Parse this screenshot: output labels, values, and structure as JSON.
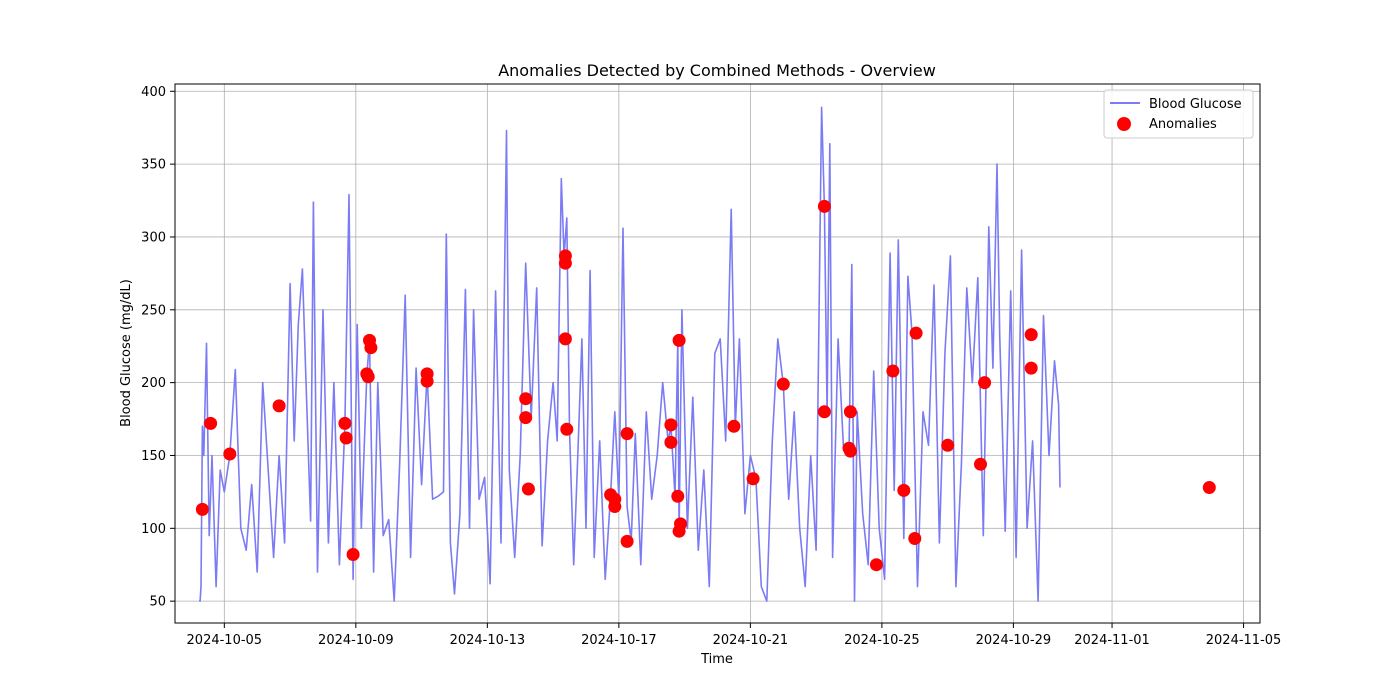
{
  "chart_data": {
    "type": "line",
    "title": "Anomalies Detected by Combined Methods - Overview",
    "xlabel": "Time",
    "ylabel": "Blood Glucose (mg/dL)",
    "x_type": "date",
    "xlim": [
      "2024-10-03T12:00",
      "2024-11-05T12:00"
    ],
    "ylim": [
      35,
      405
    ],
    "x_ticks": [
      {
        "value": "2024-10-05",
        "label": "2024-10-05"
      },
      {
        "value": "2024-10-09",
        "label": "2024-10-09"
      },
      {
        "value": "2024-10-13",
        "label": "2024-10-13"
      },
      {
        "value": "2024-10-17",
        "label": "2024-10-17"
      },
      {
        "value": "2024-10-21",
        "label": "2024-10-21"
      },
      {
        "value": "2024-10-25",
        "label": "2024-10-25"
      },
      {
        "value": "2024-10-29",
        "label": "2024-10-29"
      },
      {
        "value": "2024-11-01",
        "label": "2024-11-01"
      },
      {
        "value": "2024-11-05",
        "label": "2024-11-05"
      }
    ],
    "y_ticks": [
      50,
      100,
      150,
      200,
      250,
      300,
      350,
      400
    ],
    "grid": true,
    "legend": {
      "position": "top-right",
      "entries": [
        {
          "label": "Blood Glucose",
          "marker": "line"
        },
        {
          "label": "Anomalies",
          "marker": "circle"
        }
      ]
    },
    "series": [
      {
        "name": "Blood Glucose",
        "color": "#7b7bf5",
        "points": [
          [
            "2024-10-04T06:00",
            51
          ],
          [
            "2024-10-04T06:20",
            50
          ],
          [
            "2024-10-04T07:00",
            60
          ],
          [
            "2024-10-04T08:00",
            170
          ],
          [
            "2024-10-04T09:00",
            150
          ],
          [
            "2024-10-04T11:00",
            227
          ],
          [
            "2024-10-04T13:00",
            95
          ],
          [
            "2024-10-04T15:00",
            150
          ],
          [
            "2024-10-04T18:00",
            60
          ],
          [
            "2024-10-04T21:00",
            140
          ],
          [
            "2024-10-05T00:00",
            125
          ],
          [
            "2024-10-05T04:00",
            150
          ],
          [
            "2024-10-05T08:00",
            209
          ],
          [
            "2024-10-05T12:00",
            100
          ],
          [
            "2024-10-05T16:00",
            85
          ],
          [
            "2024-10-05T20:00",
            130
          ],
          [
            "2024-10-06T00:00",
            70
          ],
          [
            "2024-10-06T04:00",
            200
          ],
          [
            "2024-10-06T08:00",
            140
          ],
          [
            "2024-10-06T12:00",
            80
          ],
          [
            "2024-10-06T16:00",
            150
          ],
          [
            "2024-10-06T20:00",
            90
          ],
          [
            "2024-10-07T00:00",
            268
          ],
          [
            "2024-10-07T03:00",
            160
          ],
          [
            "2024-10-07T06:00",
            240
          ],
          [
            "2024-10-07T09:00",
            278
          ],
          [
            "2024-10-07T12:00",
            190
          ],
          [
            "2024-10-07T15:00",
            105
          ],
          [
            "2024-10-07T17:00",
            324
          ],
          [
            "2024-10-07T20:00",
            70
          ],
          [
            "2024-10-08T00:00",
            250
          ],
          [
            "2024-10-08T04:00",
            90
          ],
          [
            "2024-10-08T08:00",
            200
          ],
          [
            "2024-10-08T12:00",
            75
          ],
          [
            "2024-10-08T16:00",
            172
          ],
          [
            "2024-10-08T19:00",
            329
          ],
          [
            "2024-10-08T22:00",
            65
          ],
          [
            "2024-10-09T01:00",
            240
          ],
          [
            "2024-10-09T04:00",
            100
          ],
          [
            "2024-10-09T08:00",
            205
          ],
          [
            "2024-10-09T10:00",
            229
          ],
          [
            "2024-10-09T13:00",
            70
          ],
          [
            "2024-10-09T16:00",
            200
          ],
          [
            "2024-10-09T20:00",
            95
          ],
          [
            "2024-10-10T00:00",
            106
          ],
          [
            "2024-10-10T04:00",
            50
          ],
          [
            "2024-10-10T08:00",
            145
          ],
          [
            "2024-10-10T12:00",
            260
          ],
          [
            "2024-10-10T16:00",
            80
          ],
          [
            "2024-10-10T20:00",
            210
          ],
          [
            "2024-10-11T00:00",
            130
          ],
          [
            "2024-10-11T04:00",
            206
          ],
          [
            "2024-10-11T08:00",
            120
          ],
          [
            "2024-10-11T12:00",
            122
          ],
          [
            "2024-10-11T16:00",
            125
          ],
          [
            "2024-10-11T18:00",
            302
          ],
          [
            "2024-10-11T21:00",
            90
          ],
          [
            "2024-10-12T00:00",
            55
          ],
          [
            "2024-10-12T04:00",
            110
          ],
          [
            "2024-10-12T08:00",
            264
          ],
          [
            "2024-10-12T11:00",
            100
          ],
          [
            "2024-10-12T14:00",
            250
          ],
          [
            "2024-10-12T18:00",
            120
          ],
          [
            "2024-10-12T22:00",
            135
          ],
          [
            "2024-10-13T02:00",
            62
          ],
          [
            "2024-10-13T06:00",
            263
          ],
          [
            "2024-10-13T10:00",
            90
          ],
          [
            "2024-10-13T14:00",
            373
          ],
          [
            "2024-10-13T16:00",
            140
          ],
          [
            "2024-10-13T20:00",
            80
          ],
          [
            "2024-10-14T00:00",
            150
          ],
          [
            "2024-10-14T04:00",
            282
          ],
          [
            "2024-10-14T08:00",
            176
          ],
          [
            "2024-10-14T12:00",
            265
          ],
          [
            "2024-10-14T16:00",
            88
          ],
          [
            "2024-10-14T20:00",
            160
          ],
          [
            "2024-10-15T00:00",
            200
          ],
          [
            "2024-10-15T03:00",
            160
          ],
          [
            "2024-10-15T06:00",
            340
          ],
          [
            "2024-10-15T08:00",
            287
          ],
          [
            "2024-10-15T10:00",
            313
          ],
          [
            "2024-10-15T12:00",
            168
          ],
          [
            "2024-10-15T15:00",
            75
          ],
          [
            "2024-10-15T18:00",
            150
          ],
          [
            "2024-10-15T21:00",
            230
          ],
          [
            "2024-10-16T00:00",
            100
          ],
          [
            "2024-10-16T03:00",
            277
          ],
          [
            "2024-10-16T06:00",
            80
          ],
          [
            "2024-10-16T10:00",
            160
          ],
          [
            "2024-10-16T14:00",
            65
          ],
          [
            "2024-10-16T18:00",
            123
          ],
          [
            "2024-10-16T21:00",
            180
          ],
          [
            "2024-10-17T00:00",
            120
          ],
          [
            "2024-10-17T03:00",
            306
          ],
          [
            "2024-10-17T06:00",
            115
          ],
          [
            "2024-10-17T09:00",
            91
          ],
          [
            "2024-10-17T12:00",
            165
          ],
          [
            "2024-10-17T16:00",
            75
          ],
          [
            "2024-10-17T20:00",
            180
          ],
          [
            "2024-10-18T00:00",
            120
          ],
          [
            "2024-10-18T04:00",
            150
          ],
          [
            "2024-10-18T08:00",
            200
          ],
          [
            "2024-10-18T12:00",
            159
          ],
          [
            "2024-10-18T14:00",
            171
          ],
          [
            "2024-10-18T17:00",
            122
          ],
          [
            "2024-10-18T19:00",
            229
          ],
          [
            "2024-10-18T20:00",
            98
          ],
          [
            "2024-10-18T22:00",
            250
          ],
          [
            "2024-10-19T02:00",
            100
          ],
          [
            "2024-10-19T06:00",
            190
          ],
          [
            "2024-10-19T10:00",
            85
          ],
          [
            "2024-10-19T14:00",
            140
          ],
          [
            "2024-10-19T18:00",
            60
          ],
          [
            "2024-10-19T22:00",
            220
          ],
          [
            "2024-10-20T02:00",
            230
          ],
          [
            "2024-10-20T06:00",
            160
          ],
          [
            "2024-10-20T10:00",
            319
          ],
          [
            "2024-10-20T13:00",
            170
          ],
          [
            "2024-10-20T16:00",
            230
          ],
          [
            "2024-10-20T20:00",
            110
          ],
          [
            "2024-10-21T00:00",
            150
          ],
          [
            "2024-10-21T04:00",
            134
          ],
          [
            "2024-10-21T08:00",
            60
          ],
          [
            "2024-10-21T12:00",
            50
          ],
          [
            "2024-10-21T16:00",
            160
          ],
          [
            "2024-10-21T20:00",
            230
          ],
          [
            "2024-10-22T00:00",
            199
          ],
          [
            "2024-10-22T04:00",
            120
          ],
          [
            "2024-10-22T08:00",
            180
          ],
          [
            "2024-10-22T12:00",
            100
          ],
          [
            "2024-10-22T16:00",
            60
          ],
          [
            "2024-10-22T20:00",
            150
          ],
          [
            "2024-10-23T00:00",
            85
          ],
          [
            "2024-10-23T04:00",
            389
          ],
          [
            "2024-10-23T06:00",
            321
          ],
          [
            "2024-10-23T08:00",
            180
          ],
          [
            "2024-10-23T10:00",
            364
          ],
          [
            "2024-10-23T12:00",
            80
          ],
          [
            "2024-10-23T16:00",
            230
          ],
          [
            "2024-10-23T20:00",
            155
          ],
          [
            "2024-10-24T00:00",
            153
          ],
          [
            "2024-10-24T02:00",
            281
          ],
          [
            "2024-10-24T04:00",
            50
          ],
          [
            "2024-10-24T06:00",
            180
          ],
          [
            "2024-10-24T10:00",
            110
          ],
          [
            "2024-10-24T14:00",
            75
          ],
          [
            "2024-10-24T18:00",
            208
          ],
          [
            "2024-10-24T22:00",
            100
          ],
          [
            "2024-10-25T02:00",
            65
          ],
          [
            "2024-10-25T06:00",
            289
          ],
          [
            "2024-10-25T09:00",
            126
          ],
          [
            "2024-10-25T12:00",
            298
          ],
          [
            "2024-10-25T16:00",
            93
          ],
          [
            "2024-10-25T19:00",
            273
          ],
          [
            "2024-10-25T22:00",
            234
          ],
          [
            "2024-10-26T02:00",
            60
          ],
          [
            "2024-10-26T06:00",
            180
          ],
          [
            "2024-10-26T10:00",
            157
          ],
          [
            "2024-10-26T14:00",
            267
          ],
          [
            "2024-10-26T18:00",
            90
          ],
          [
            "2024-10-26T22:00",
            220
          ],
          [
            "2024-10-27T02:00",
            287
          ],
          [
            "2024-10-27T06:00",
            60
          ],
          [
            "2024-10-27T10:00",
            144
          ],
          [
            "2024-10-27T14:00",
            265
          ],
          [
            "2024-10-27T18:00",
            200
          ],
          [
            "2024-10-27T22:00",
            272
          ],
          [
            "2024-10-28T02:00",
            95
          ],
          [
            "2024-10-28T06:00",
            307
          ],
          [
            "2024-10-28T09:00",
            210
          ],
          [
            "2024-10-28T12:00",
            350
          ],
          [
            "2024-10-28T14:00",
            233
          ],
          [
            "2024-10-28T18:00",
            98
          ],
          [
            "2024-10-28T22:00",
            263
          ],
          [
            "2024-10-29T02:00",
            80
          ],
          [
            "2024-10-29T06:00",
            291
          ],
          [
            "2024-10-29T10:00",
            100
          ],
          [
            "2024-10-29T14:00",
            160
          ],
          [
            "2024-10-29T18:00",
            50
          ],
          [
            "2024-10-29T22:00",
            246
          ],
          [
            "2024-10-30T02:00",
            150
          ],
          [
            "2024-10-30T06:00",
            215
          ],
          [
            "2024-10-30T09:00",
            185
          ],
          [
            "2024-10-30T10:00",
            128
          ]
        ]
      },
      {
        "name": "Anomalies",
        "color": "#ff0000",
        "marker": "circle",
        "points": [
          [
            "2024-10-04T08:00",
            113
          ],
          [
            "2024-10-04T14:00",
            172
          ],
          [
            "2024-10-05T04:00",
            151
          ],
          [
            "2024-10-06T16:00",
            184
          ],
          [
            "2024-10-08T16:00",
            172
          ],
          [
            "2024-10-08T17:00",
            162
          ],
          [
            "2024-10-08T22:00",
            82
          ],
          [
            "2024-10-09T08:00",
            206
          ],
          [
            "2024-10-09T09:00",
            204
          ],
          [
            "2024-10-09T10:00",
            229
          ],
          [
            "2024-10-09T11:00",
            224
          ],
          [
            "2024-10-11T04:00",
            206
          ],
          [
            "2024-10-11T04:00",
            201
          ],
          [
            "2024-10-14T04:00",
            189
          ],
          [
            "2024-10-14T04:00",
            176
          ],
          [
            "2024-10-14T06:00",
            127
          ],
          [
            "2024-10-15T09:00",
            287
          ],
          [
            "2024-10-15T09:00",
            282
          ],
          [
            "2024-10-15T09:00",
            230
          ],
          [
            "2024-10-15T10:00",
            168
          ],
          [
            "2024-10-16T18:00",
            123
          ],
          [
            "2024-10-16T21:00",
            120
          ],
          [
            "2024-10-16T21:00",
            115
          ],
          [
            "2024-10-17T06:00",
            91
          ],
          [
            "2024-10-17T06:00",
            165
          ],
          [
            "2024-10-18T14:00",
            171
          ],
          [
            "2024-10-18T14:00",
            159
          ],
          [
            "2024-10-18T19:00",
            122
          ],
          [
            "2024-10-18T20:00",
            229
          ],
          [
            "2024-10-18T20:00",
            98
          ],
          [
            "2024-10-18T21:00",
            103
          ],
          [
            "2024-10-20T12:00",
            170
          ],
          [
            "2024-10-21T02:00",
            134
          ],
          [
            "2024-10-22T00:00",
            199
          ],
          [
            "2024-10-23T06:00",
            321
          ],
          [
            "2024-10-23T06:00",
            180
          ],
          [
            "2024-10-24T00:00",
            155
          ],
          [
            "2024-10-24T01:00",
            153
          ],
          [
            "2024-10-24T01:00",
            180
          ],
          [
            "2024-10-24T20:00",
            75
          ],
          [
            "2024-10-25T08:00",
            208
          ],
          [
            "2024-10-25T16:00",
            126
          ],
          [
            "2024-10-26T00:00",
            93
          ],
          [
            "2024-10-26T01:00",
            234
          ],
          [
            "2024-10-27T00:00",
            157
          ],
          [
            "2024-10-28T00:00",
            144
          ],
          [
            "2024-10-28T03:00",
            200
          ],
          [
            "2024-10-29T13:00",
            233
          ],
          [
            "2024-10-29T13:00",
            210
          ],
          [
            "2024-11-03T23:00",
            128
          ]
        ]
      }
    ]
  }
}
